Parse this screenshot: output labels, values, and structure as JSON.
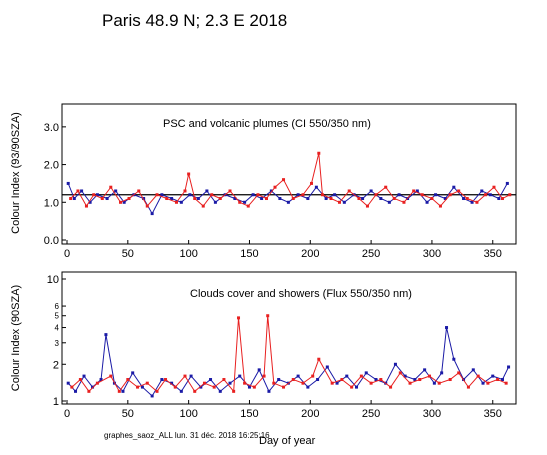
{
  "title": "Paris  48.9 N; 2.3 E   2018",
  "footer": "graphes_saoz_ALL  lun. 31 déc. 2018 16:25:16",
  "xlabel": "Day of year",
  "colors": {
    "series_a": "#1a1aa6",
    "series_b": "#e82020",
    "axis": "#000000"
  },
  "chart_data": [
    {
      "type": "scatter",
      "title": "PSC and volcanic plumes (CI 550/350 nm)",
      "ylabel": "Colour Index (93/90SZA)",
      "xlim": [
        0,
        365
      ],
      "ylim": [
        0,
        3.5
      ],
      "yscale": "linear",
      "xticks": [
        0,
        50,
        100,
        150,
        200,
        250,
        300,
        350
      ],
      "yticks": [
        0.0,
        1.0,
        2.0,
        3.0
      ],
      "ytick_labels": [
        "0.0",
        "1.0",
        "2.0",
        "3.0"
      ],
      "series": [
        {
          "color": "#1a1aa6",
          "x": [
            1,
            6,
            12,
            19,
            25,
            33,
            40,
            47,
            55,
            63,
            70,
            78,
            86,
            94,
            101,
            108,
            115,
            122,
            130,
            138,
            146,
            153,
            160,
            168,
            175,
            182,
            190,
            198,
            205,
            213,
            220,
            228,
            236,
            243,
            250,
            258,
            265,
            273,
            280,
            288,
            296,
            303,
            311,
            318,
            326,
            333,
            341,
            348,
            355,
            362
          ],
          "y": [
            1.5,
            1.1,
            1.3,
            1.0,
            1.2,
            1.1,
            1.3,
            1.0,
            1.2,
            1.1,
            0.7,
            1.2,
            1.1,
            1.0,
            1.2,
            1.1,
            1.3,
            1.0,
            1.2,
            1.1,
            1.0,
            1.2,
            1.1,
            1.3,
            1.1,
            1.0,
            1.2,
            1.1,
            1.4,
            1.1,
            1.2,
            1.0,
            1.2,
            1.1,
            1.3,
            1.1,
            1.0,
            1.2,
            1.1,
            1.3,
            1.0,
            1.2,
            1.1,
            1.4,
            1.1,
            1.0,
            1.3,
            1.2,
            1.1,
            1.5
          ]
        },
        {
          "color": "#e82020",
          "x": [
            3,
            9,
            16,
            22,
            29,
            36,
            44,
            51,
            59,
            66,
            74,
            82,
            90,
            97,
            100,
            105,
            112,
            119,
            126,
            134,
            142,
            149,
            157,
            164,
            171,
            178,
            186,
            194,
            201,
            207,
            210,
            217,
            224,
            232,
            240,
            247,
            254,
            262,
            269,
            277,
            285,
            292,
            300,
            307,
            315,
            322,
            329,
            337,
            344,
            351,
            358,
            364
          ],
          "y": [
            1.1,
            1.3,
            0.9,
            1.2,
            1.1,
            1.4,
            1.0,
            1.1,
            1.3,
            0.9,
            1.2,
            1.1,
            1.0,
            1.3,
            1.75,
            1.1,
            0.9,
            1.2,
            1.1,
            1.3,
            1.0,
            0.9,
            1.2,
            1.1,
            1.4,
            1.6,
            1.1,
            1.2,
            1.5,
            2.3,
            1.2,
            1.1,
            1.0,
            1.3,
            1.1,
            0.9,
            1.2,
            1.4,
            1.1,
            1.0,
            1.3,
            1.2,
            1.1,
            0.9,
            1.2,
            1.3,
            1.1,
            1.0,
            1.2,
            1.4,
            1.1,
            1.2
          ]
        }
      ]
    },
    {
      "type": "scatter",
      "title": "Clouds cover and showers (Flux 550/350 nm)",
      "ylabel": "Colour Index (90SZA)",
      "xlim": [
        0,
        365
      ],
      "ylim": [
        1,
        10
      ],
      "yscale": "log",
      "xticks": [
        0,
        50,
        100,
        150,
        200,
        250,
        300,
        350
      ],
      "yticks": [
        1,
        2,
        3,
        4,
        5,
        6,
        10
      ],
      "ytick_labels": [
        "1",
        "2",
        "3",
        "4",
        "5",
        "6",
        "10"
      ],
      "series": [
        {
          "color": "#1a1aa6",
          "x": [
            1,
            7,
            14,
            21,
            28,
            32,
            39,
            46,
            54,
            62,
            70,
            78,
            86,
            94,
            102,
            110,
            118,
            126,
            134,
            142,
            150,
            158,
            166,
            174,
            182,
            190,
            198,
            206,
            214,
            222,
            230,
            238,
            246,
            254,
            262,
            270,
            278,
            286,
            294,
            302,
            308,
            312,
            318,
            326,
            334,
            342,
            350,
            358,
            363
          ],
          "y": [
            1.4,
            1.2,
            1.6,
            1.3,
            1.5,
            3.5,
            1.4,
            1.2,
            1.7,
            1.3,
            1.1,
            1.5,
            1.4,
            1.2,
            1.6,
            1.3,
            1.5,
            1.2,
            1.4,
            1.6,
            1.3,
            1.8,
            1.2,
            1.5,
            1.4,
            1.6,
            1.3,
            1.5,
            1.9,
            1.4,
            1.6,
            1.3,
            1.7,
            1.5,
            1.4,
            2.0,
            1.6,
            1.5,
            1.8,
            1.4,
            1.7,
            4.0,
            2.2,
            1.5,
            1.8,
            1.4,
            1.6,
            1.5,
            1.9
          ]
        },
        {
          "color": "#e82020",
          "x": [
            4,
            11,
            18,
            25,
            36,
            43,
            50,
            58,
            66,
            74,
            81,
            89,
            97,
            105,
            113,
            121,
            129,
            137,
            141,
            146,
            154,
            162,
            165,
            170,
            178,
            186,
            194,
            202,
            207,
            218,
            226,
            234,
            242,
            250,
            258,
            266,
            274,
            282,
            290,
            298,
            306,
            315,
            322,
            330,
            338,
            346,
            354,
            361
          ],
          "y": [
            1.3,
            1.5,
            1.2,
            1.4,
            1.6,
            1.2,
            1.5,
            1.3,
            1.4,
            1.2,
            1.5,
            1.3,
            1.6,
            1.2,
            1.4,
            1.3,
            1.5,
            1.2,
            4.8,
            1.4,
            1.3,
            1.6,
            5.0,
            1.4,
            1.3,
            1.5,
            1.4,
            1.6,
            2.2,
            1.4,
            1.5,
            1.3,
            1.6,
            1.4,
            1.5,
            1.3,
            1.7,
            1.4,
            1.5,
            1.6,
            1.4,
            1.5,
            1.7,
            1.3,
            1.6,
            1.4,
            1.5,
            1.4
          ]
        }
      ]
    }
  ]
}
